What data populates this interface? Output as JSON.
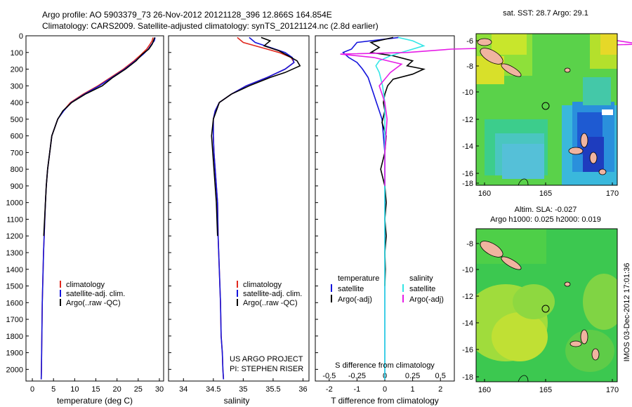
{
  "header": {
    "line1": "Argo profile: AO 5903379_73 26-Nov-2012 20121128_396 12.866S 164.854E",
    "line2": "Climatology: CARS2009. Satellite-adjusted climatology: synTS_20121124.nc (2.8d earlier)"
  },
  "colors": {
    "climatology": "#e0281e",
    "satellite": "#1414dc",
    "argo": "#000000",
    "sat_salinity": "#33e6e6",
    "argo_salinity": "#e61ee6"
  },
  "chart_data": [
    {
      "type": "line",
      "id": "temperature",
      "xlabel": "temperature (deg C)",
      "xlim": [
        -1.5,
        31
      ],
      "xticks": [
        0,
        5,
        10,
        15,
        20,
        25,
        30
      ],
      "ylim": [
        0,
        2070
      ],
      "yticks": [
        0,
        100,
        200,
        300,
        400,
        500,
        600,
        700,
        800,
        900,
        1000,
        1100,
        1200,
        1300,
        1400,
        1500,
        1600,
        1700,
        1800,
        1900,
        2000
      ],
      "legend": [
        "climatology",
        "satellite-adj. clim.",
        "Argo(..raw -QC)"
      ],
      "series": [
        {
          "name": "climatology",
          "color": "#e0281e",
          "x": [
            28.5,
            28.3,
            27.8,
            27.0,
            25.8,
            24.0,
            21.5,
            18.5,
            15.5,
            12.0,
            9.0,
            7.3,
            6.0,
            5.3,
            4.6,
            4.1,
            3.6,
            3.3,
            3.1,
            2.95,
            2.8,
            2.65,
            2.55,
            2.45,
            2.35,
            2.3,
            2.25,
            2.2,
            2.15,
            2.1
          ],
          "y": [
            10,
            30,
            50,
            80,
            110,
            150,
            200,
            250,
            300,
            350,
            400,
            450,
            500,
            550,
            600,
            700,
            800,
            900,
            1000,
            1100,
            1200,
            1300,
            1400,
            1500,
            1600,
            1700,
            1800,
            1900,
            2000,
            2060
          ]
        },
        {
          "name": "satellite-adj. clim.",
          "color": "#1414dc",
          "x": [
            29.0,
            28.8,
            28.2,
            27.4,
            26.2,
            24.3,
            21.8,
            18.8,
            15.8,
            12.3,
            9.2,
            7.4,
            6.0,
            5.3,
            4.6,
            4.1,
            3.6,
            3.3,
            3.1,
            2.95,
            2.8,
            2.65,
            2.55,
            2.45,
            2.35,
            2.3,
            2.25,
            2.2,
            2.15,
            2.1
          ],
          "y": [
            10,
            30,
            50,
            80,
            110,
            150,
            200,
            250,
            300,
            350,
            400,
            450,
            500,
            550,
            600,
            700,
            800,
            900,
            1000,
            1100,
            1200,
            1300,
            1400,
            1500,
            1600,
            1700,
            1800,
            1900,
            2000,
            2060
          ]
        },
        {
          "name": "Argo(..raw -QC)",
          "color": "#000000",
          "x": [
            28.9,
            28.6,
            28.3,
            27.5,
            26.0,
            24.5,
            22.0,
            19.0,
            16.5,
            12.5,
            9.3,
            7.2,
            6.0,
            5.3,
            4.6,
            4.1,
            3.6,
            3.3,
            3.1,
            2.9,
            2.7
          ],
          "y": [
            10,
            30,
            50,
            80,
            110,
            150,
            200,
            250,
            300,
            350,
            400,
            450,
            500,
            550,
            600,
            700,
            800,
            900,
            1000,
            1100,
            1200
          ]
        }
      ]
    },
    {
      "type": "line",
      "id": "salinity",
      "xlabel": "salinity",
      "xlim": [
        33.75,
        36.1
      ],
      "xticks": [
        34,
        34.5,
        35,
        35.5,
        36
      ],
      "xticklabels": [
        "34",
        "34.5",
        "35",
        "35.5",
        "36"
      ],
      "ylim": [
        0,
        2070
      ],
      "legend": [
        "climatology",
        "satellite-adj. clim.",
        "Argo(..raw -QC)"
      ],
      "annotations": [
        "US ARGO PROJECT",
        "PI: STEPHEN RISER"
      ],
      "series": [
        {
          "name": "climatology",
          "color": "#e0281e",
          "x": [
            34.9,
            35.0,
            35.3,
            35.6,
            35.8,
            35.85,
            35.7,
            35.4,
            35.05,
            34.8,
            34.6,
            34.53,
            34.5,
            34.5,
            34.51,
            34.53,
            34.55,
            34.57,
            34.58,
            34.6,
            34.62,
            34.63,
            34.65,
            34.66,
            34.67
          ],
          "y": [
            10,
            40,
            70,
            100,
            130,
            160,
            200,
            250,
            300,
            350,
            400,
            450,
            500,
            600,
            700,
            800,
            900,
            1000,
            1200,
            1400,
            1600,
            1800,
            1900,
            2000,
            2060
          ]
        },
        {
          "name": "satellite-adj. clim.",
          "color": "#1414dc",
          "x": [
            35.1,
            35.2,
            35.45,
            35.7,
            35.82,
            35.85,
            35.7,
            35.4,
            35.05,
            34.8,
            34.6,
            34.53,
            34.5,
            34.5,
            34.51,
            34.53,
            34.55,
            34.57,
            34.58,
            34.6,
            34.62,
            34.63,
            34.65,
            34.66,
            34.67
          ],
          "y": [
            10,
            40,
            70,
            100,
            130,
            160,
            200,
            250,
            300,
            350,
            400,
            450,
            500,
            600,
            700,
            800,
            900,
            1000,
            1200,
            1400,
            1600,
            1800,
            1900,
            2000,
            2060
          ]
        },
        {
          "name": "Argo(..raw -QC)",
          "color": "#000000",
          "x": [
            35.3,
            35.45,
            35.35,
            35.6,
            35.75,
            35.9,
            35.95,
            35.7,
            35.45,
            35.1,
            34.8,
            34.6,
            34.5,
            34.47,
            34.49,
            34.51,
            34.53,
            34.55,
            34.57
          ],
          "y": [
            10,
            30,
            60,
            90,
            120,
            150,
            180,
            220,
            250,
            300,
            350,
            400,
            500,
            600,
            700,
            800,
            900,
            1000,
            1200
          ]
        }
      ]
    },
    {
      "type": "line",
      "id": "difference",
      "xlabel": "T difference from climatology",
      "xlabel2": "S difference from climatology",
      "xlim": [
        -2.5,
        2.5
      ],
      "xticks": [
        -2,
        -1,
        0,
        1,
        2
      ],
      "xticks_s": [
        -0.5,
        -0.25,
        0,
        0.25,
        0.5
      ],
      "xticklabels_s": [
        "-0.5",
        "-0.25",
        "0",
        "0.25",
        "0.5"
      ],
      "ylim": [
        0,
        2070
      ],
      "legend_headers": [
        "temperature",
        "salinity"
      ],
      "legend": [
        "satellite",
        "Argo(-adj)",
        "satellite",
        "Argo(-adj)"
      ],
      "series": [
        {
          "name": "temperature satellite",
          "color": "#1414dc",
          "x": [
            0.5,
            -1.0,
            -1.2,
            -1.5,
            -1.3,
            -1.0,
            -0.8,
            -0.6,
            -0.5,
            -0.4,
            -0.3,
            -0.2,
            -0.1,
            -0.05,
            0,
            0,
            0
          ],
          "y": [
            10,
            40,
            80,
            100,
            130,
            160,
            200,
            250,
            300,
            350,
            400,
            450,
            500,
            600,
            700,
            800,
            2060
          ]
        },
        {
          "name": "temperature Argo(-adj)",
          "color": "#000000",
          "x": [
            0.3,
            -0.5,
            -0.2,
            -0.5,
            0.3,
            1.0,
            0.8,
            1.4,
            1.0,
            0.3,
            0.1,
            0,
            -0.05,
            0,
            -0.1,
            0.05,
            0,
            -0.15,
            0,
            0.05,
            0,
            0.05,
            0,
            0.02,
            0
          ],
          "y": [
            10,
            40,
            70,
            100,
            120,
            150,
            180,
            200,
            230,
            260,
            300,
            350,
            400,
            450,
            520,
            600,
            700,
            800,
            900,
            1000,
            1100,
            1200,
            1300,
            1400,
            1500
          ]
        },
        {
          "name": "salinity satellite",
          "color": "#33e6e6",
          "x": [
            0.12,
            0.25,
            0.35,
            0.2,
            0.05,
            -0.05,
            -0.08,
            -0.05,
            -0.02,
            0,
            0,
            0,
            0
          ],
          "y": [
            10,
            30,
            60,
            90,
            120,
            150,
            180,
            220,
            300,
            400,
            500,
            800,
            2060
          ]
        },
        {
          "name": "salinity Argo(-adj)",
          "color": "#e61ee6",
          "x": [
            1.9,
            2.3,
            0.6,
            0.2,
            -0.4,
            -0.1,
            0.15,
            0.05,
            -0.05,
            0,
            0.02,
            0,
            0
          ],
          "y": [
            10,
            50,
            80,
            100,
            110,
            130,
            170,
            220,
            300,
            400,
            500,
            700,
            900
          ]
        }
      ]
    }
  ],
  "maps": {
    "top": {
      "title": "sat. SST: 28.7 Argo: 29.1",
      "xticks": [
        "160",
        "165",
        "170"
      ],
      "yticks": [
        "-6",
        "-8",
        "-10",
        "-12",
        "-14",
        "-16",
        "-18"
      ]
    },
    "bottom": {
      "title1": "Altim. SLA: -0.027",
      "title2": "Argo h1000: 0.025 h2000: 0.019",
      "xticks": [
        "160",
        "165",
        "170"
      ],
      "yticks": [
        "-8",
        "-10",
        "-12",
        "-14",
        "-16",
        "-18"
      ]
    },
    "timestamp": "IMOS 03-Dec-2012 17:01:36"
  }
}
